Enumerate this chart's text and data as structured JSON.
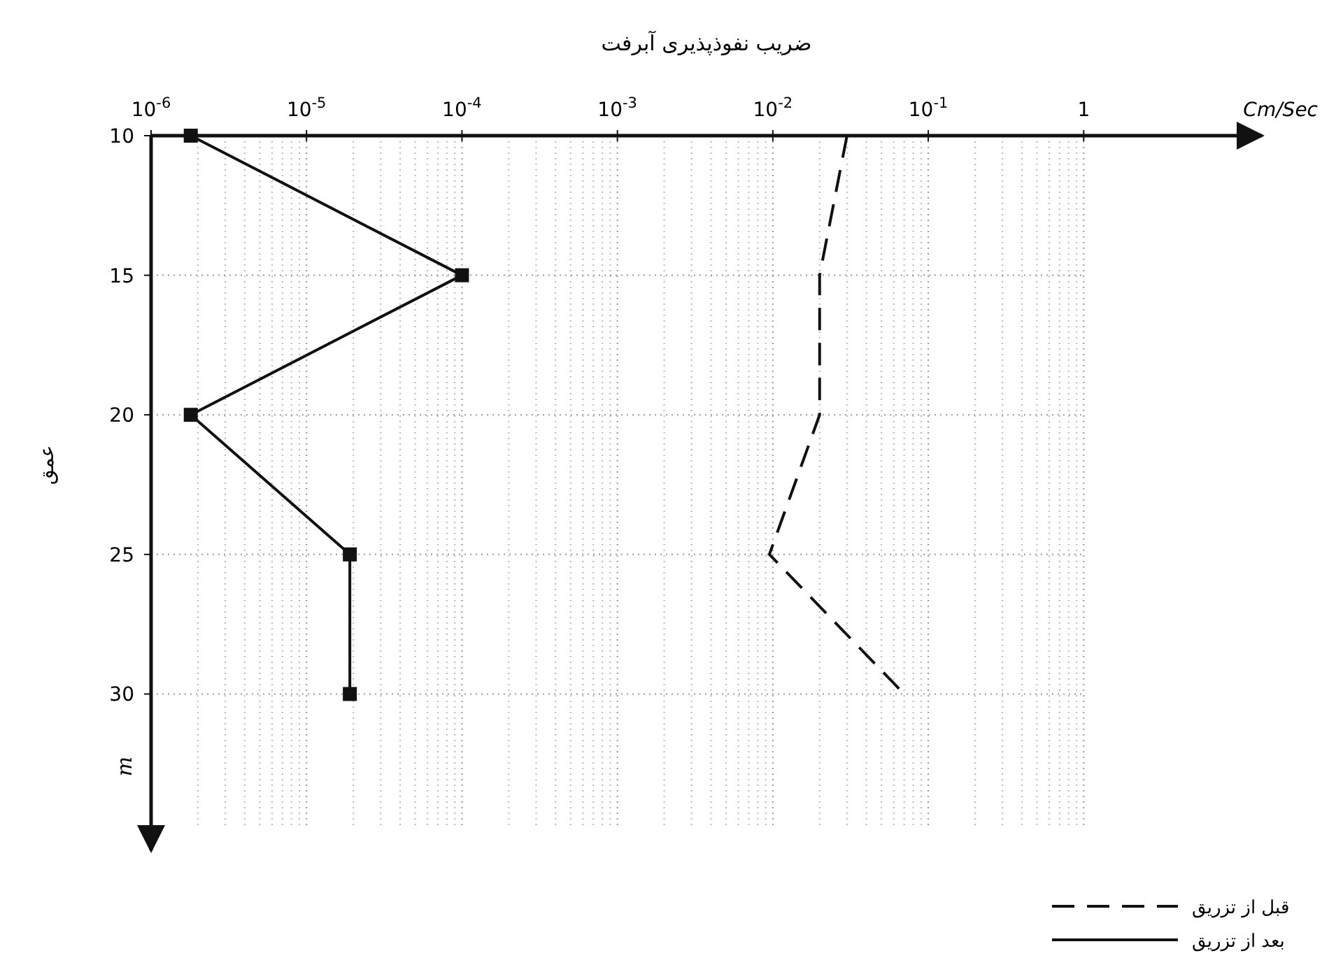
{
  "chart_data": {
    "type": "line",
    "title": "ضریب نفوذپذیری آبرفت",
    "xlabel": "Cm/Sec",
    "ylabel": "عمق",
    "annotations": [
      "m"
    ],
    "log": "x",
    "xlim": [
      1e-06,
      14
    ],
    "ylim": [
      35.6,
      10
    ],
    "xticks": [
      {
        "value": 1e-06,
        "label": "10$^{-6}$"
      },
      {
        "value": 1e-05,
        "label": "10$^{-5}$"
      },
      {
        "value": 0.0001,
        "label": "10$^{-4}$"
      },
      {
        "value": 0.001,
        "label": "10$^{-3}$"
      },
      {
        "value": 0.01,
        "label": "10$^{-2}$"
      },
      {
        "value": 0.1,
        "label": "10$^{-1}$"
      },
      1
    ],
    "yticks": [
      10,
      15,
      20,
      25,
      30
    ],
    "grid": true,
    "legend": "bottom right",
    "series": [
      {
        "name": "قبل از تزریق",
        "color": "#111111",
        "line_style": "dashed",
        "marker": "none",
        "x": [
          0.03,
          0.02,
          0.02,
          0.0095,
          0.07
        ],
        "values": [
          10,
          15,
          20,
          25,
          30
        ]
      },
      {
        "name": "بعد از تزریق",
        "color": "#111111",
        "line_style": "solid",
        "marker": "square",
        "x": [
          1.8e-06,
          0.0001,
          1.8e-06,
          1.9e-05,
          1.9e-05
        ],
        "values": [
          10,
          15,
          20,
          25,
          30
        ]
      }
    ]
  }
}
